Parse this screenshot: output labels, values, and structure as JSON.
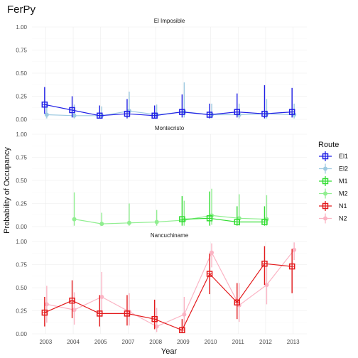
{
  "chart_data": {
    "type": "line",
    "title": "FerPy",
    "xlabel": "Year",
    "ylabel": "Probability of Occupancy",
    "x_ticks": [
      "2003",
      "2004",
      "2005",
      "2007",
      "2008",
      "2009",
      "2010",
      "2011",
      "2012",
      "2013"
    ],
    "y_ticks": [
      "0.00",
      "0.25",
      "0.50",
      "0.75",
      "1.00"
    ],
    "ylim": [
      0,
      1
    ],
    "legend": {
      "title": "Route",
      "position": "right"
    },
    "series_colors": {
      "El1": "#1f1fe6",
      "El2": "#9ecae1",
      "M1": "#33dd33",
      "M2": "#90ee90",
      "N1": "#e31a1c",
      "N2": "#fbb4c4"
    },
    "legend_entries": [
      "El1",
      "El2",
      "M1",
      "M2",
      "N1",
      "N2"
    ],
    "facets": [
      {
        "title": "El Imposible",
        "series": [
          {
            "name": "El1",
            "x": [
              "2003",
              "2004",
              "2005",
              "2007",
              "2008",
              "2009",
              "2010",
              "2011",
              "2012",
              "2013"
            ],
            "y": [
              0.16,
              0.1,
              0.04,
              0.06,
              0.04,
              0.08,
              0.05,
              0.08,
              0.06,
              0.08
            ],
            "lo": [
              0.06,
              0.02,
              0.01,
              0.01,
              0.01,
              0.02,
              0.01,
              0.02,
              0.01,
              0.02
            ],
            "hi": [
              0.35,
              0.25,
              0.15,
              0.22,
              0.15,
              0.27,
              0.17,
              0.28,
              0.37,
              0.34
            ]
          },
          {
            "name": "El2",
            "x": [
              "2003",
              "2004",
              "2005",
              "2007",
              "2008",
              "2009",
              "2010",
              "2011",
              "2012",
              "2013"
            ],
            "y": [
              0.05,
              0.04,
              0.04,
              0.09,
              0.05,
              0.08,
              0.05,
              0.05,
              0.06,
              0.05
            ],
            "lo": [
              0.01,
              0.01,
              0.01,
              0.02,
              0.01,
              0.02,
              0.01,
              0.01,
              0.01,
              0.01
            ],
            "hi": [
              0.17,
              0.16,
              0.14,
              0.3,
              0.16,
              0.4,
              0.17,
              0.17,
              0.22,
              0.17
            ]
          }
        ]
      },
      {
        "title": "Montecristo",
        "series": [
          {
            "name": "M1",
            "x": [
              "2009",
              "2010",
              "2011",
              "2012"
            ],
            "y": [
              0.08,
              0.09,
              0.05,
              0.05
            ],
            "lo": [
              0.01,
              0.01,
              0.01,
              0.01
            ],
            "hi": [
              0.33,
              0.38,
              0.22,
              0.22
            ]
          },
          {
            "name": "M2",
            "x": [
              "2004",
              "2005",
              "2007",
              "2008",
              "2009",
              "2010",
              "2011",
              "2012"
            ],
            "y": [
              0.08,
              0.03,
              0.04,
              0.05,
              0.07,
              0.12,
              0.09,
              0.08
            ],
            "lo": [
              0.01,
              0.01,
              0.01,
              0.01,
              0.01,
              0.02,
              0.01,
              0.01
            ],
            "hi": [
              0.37,
              0.15,
              0.25,
              0.18,
              0.28,
              0.41,
              0.35,
              0.34
            ]
          }
        ]
      },
      {
        "title": "Nancuchiname",
        "series": [
          {
            "name": "N1",
            "x": [
              "2003",
              "2004",
              "2005",
              "2007",
              "2008",
              "2009",
              "2010",
              "2011",
              "2012",
              "2013"
            ],
            "y": [
              0.23,
              0.36,
              0.22,
              0.22,
              0.16,
              0.04,
              0.65,
              0.34,
              0.76,
              0.73
            ],
            "lo": [
              0.08,
              0.17,
              0.08,
              0.09,
              0.05,
              0.01,
              0.43,
              0.16,
              0.53,
              0.44
            ],
            "hi": [
              0.4,
              0.58,
              0.42,
              0.42,
              0.37,
              0.16,
              0.87,
              0.55,
              0.95,
              0.92
            ]
          },
          {
            "name": "N2",
            "x": [
              "2003",
              "2004",
              "2005",
              "2007",
              "2008",
              "2009",
              "2010",
              "2011",
              "2012",
              "2013"
            ],
            "y": [
              0.32,
              0.26,
              0.4,
              0.24,
              0.08,
              0.21,
              0.88,
              0.31,
              0.53,
              0.91
            ],
            "lo": [
              0.12,
              0.1,
              0.18,
              0.09,
              0.02,
              0.05,
              0.72,
              0.13,
              0.32,
              0.8
            ],
            "hi": [
              0.52,
              0.45,
              0.67,
              0.44,
              0.28,
              0.4,
              0.98,
              0.55,
              0.74,
              0.99
            ]
          }
        ]
      }
    ]
  }
}
